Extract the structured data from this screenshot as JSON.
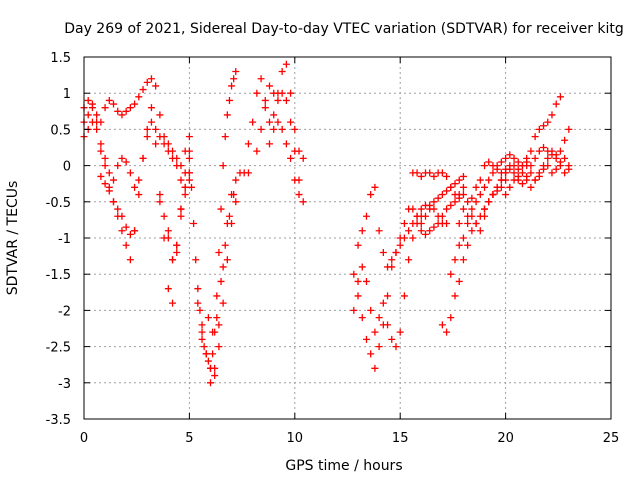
{
  "chart_data": {
    "type": "scatter",
    "title": "Day 269 of 2021, Sidereal Day-to-day VTEC variation (SDTVAR) for receiver kitg",
    "xlabel": "GPS time / hours",
    "ylabel": "SDTVAR / TECUs",
    "xlim": [
      0,
      25
    ],
    "ylim": [
      -3.5,
      1.5
    ],
    "xticks": [
      "0",
      "5",
      "10",
      "15",
      "20",
      "25"
    ],
    "yticks": [
      "1.5",
      "1",
      "0.5",
      "0",
      "-0.5",
      "-1",
      "-1.5",
      "-2",
      "-2.5",
      "-3",
      "-3.5"
    ],
    "grid": true,
    "marker": "plus",
    "color": "#ff0000",
    "series": [
      {
        "x": [
          0.0,
          0.2,
          0.4,
          0.6,
          0.8,
          1.0,
          1.2,
          1.4,
          1.6,
          1.8,
          2.0,
          2.2,
          2.4,
          2.6,
          2.8,
          3.0,
          3.2,
          3.4,
          3.6,
          3.8,
          4.0,
          4.2,
          4.4,
          4.6,
          4.8,
          5.0
        ],
        "y": [
          0.8,
          0.9,
          0.85,
          0.7,
          0.6,
          0.8,
          0.9,
          0.85,
          0.75,
          0.7,
          0.75,
          0.8,
          0.85,
          0.95,
          1.05,
          1.15,
          1.2,
          1.1,
          0.7,
          0.4,
          0.3,
          0.2,
          0.1,
          0.0,
          0.2,
          0.4
        ]
      },
      {
        "x": [
          0.0,
          0.2,
          0.4,
          0.6,
          0.8,
          1.0,
          1.2,
          1.4,
          1.6,
          1.8,
          2.0,
          2.2,
          2.4,
          2.6,
          2.8,
          3.0,
          3.2,
          3.4,
          3.6,
          3.8,
          4.0,
          4.2,
          4.4,
          4.6,
          4.8,
          5.0
        ],
        "y": [
          0.6,
          0.7,
          0.8,
          0.6,
          0.3,
          0.1,
          -0.1,
          -0.2,
          0.0,
          0.1,
          0.05,
          -0.1,
          -0.3,
          -0.2,
          0.1,
          0.4,
          0.6,
          0.5,
          0.4,
          0.3,
          0.2,
          0.1,
          0.0,
          -0.2,
          -0.1,
          0.1
        ]
      },
      {
        "x": [
          0.0,
          0.2,
          0.4,
          0.6,
          0.8,
          1.0,
          1.2,
          1.4,
          1.6,
          1.8,
          2.0,
          2.2,
          2.4,
          2.6,
          2.8,
          3.0,
          3.2,
          3.4,
          3.6,
          3.8,
          4.0,
          4.2,
          4.4,
          4.6,
          4.8,
          5.0
        ],
        "y": [
          0.4,
          0.5,
          0.6,
          0.5,
          0.2,
          0.0,
          -0.3,
          -0.5,
          -0.7,
          -0.9,
          -1.1,
          -1.3,
          -0.9,
          -0.4,
          0.1,
          0.5,
          0.8,
          0.3,
          -0.4,
          -1.0,
          -1.7,
          -1.9,
          -1.2,
          -0.6,
          -0.3,
          -0.1
        ]
      },
      {
        "x": [
          0.8,
          1.0,
          1.2,
          1.4,
          1.6,
          1.8,
          2.0,
          2.2,
          2.4
        ],
        "y": [
          -0.15,
          -0.25,
          -0.35,
          -0.5,
          -0.6,
          -0.7,
          -0.85,
          -0.95,
          -0.9
        ]
      },
      {
        "x": [
          3.6,
          3.8,
          4.0,
          4.2,
          4.4,
          4.6,
          4.8,
          5.0
        ],
        "y": [
          -0.5,
          -0.7,
          -1.0,
          -1.3,
          -1.1,
          -0.6,
          -0.3,
          -0.1
        ]
      },
      {
        "x": [
          4.0,
          4.2,
          4.4,
          4.6,
          4.8,
          5.0
        ],
        "y": [
          -0.9,
          -1.3,
          -1.1,
          -0.7,
          -0.4,
          -0.2
        ]
      },
      {
        "x": [
          5.0,
          5.1,
          5.2,
          5.3,
          5.4,
          5.5,
          5.6,
          5.7,
          5.8,
          5.9,
          6.0,
          6.1,
          6.2,
          6.3,
          6.4,
          6.5,
          6.6,
          6.7,
          6.8,
          6.9,
          7.0,
          7.1,
          7.2
        ],
        "y": [
          0.2,
          -0.3,
          -0.8,
          -1.3,
          -1.7,
          -2.0,
          -2.3,
          -2.5,
          -2.6,
          -2.7,
          -2.8,
          -2.6,
          -2.3,
          -1.8,
          -1.2,
          -0.6,
          0.0,
          0.4,
          0.7,
          0.9,
          1.1,
          1.2,
          1.3
        ]
      },
      {
        "x": [
          5.4,
          5.6,
          5.8,
          6.0,
          6.2,
          6.4,
          6.6,
          6.8,
          7.0,
          7.2,
          7.4,
          7.6,
          7.8
        ],
        "y": [
          -1.9,
          -2.2,
          -2.6,
          -3.0,
          -2.8,
          -2.2,
          -1.4,
          -0.8,
          -0.4,
          -0.2,
          -0.1,
          -0.1,
          -0.1
        ]
      },
      {
        "x": [
          5.6,
          5.8,
          6.0,
          6.2,
          6.4,
          6.6,
          6.8,
          7.0,
          7.2
        ],
        "y": [
          -2.4,
          -2.6,
          -2.8,
          -2.9,
          -2.5,
          -1.9,
          -1.3,
          -0.8,
          -0.5
        ]
      },
      {
        "x": [
          5.9,
          6.1,
          6.3,
          6.5,
          6.7,
          6.9,
          7.1
        ],
        "y": [
          -2.1,
          -2.3,
          -2.1,
          -1.6,
          -1.1,
          -0.7,
          -0.4
        ]
      },
      {
        "x": [
          7.8,
          8.0,
          8.2,
          8.4,
          8.6,
          8.8,
          9.0,
          9.2,
          9.4,
          9.6,
          9.8,
          10.0,
          10.2,
          10.4
        ],
        "y": [
          0.3,
          0.6,
          1.0,
          1.2,
          0.9,
          0.6,
          0.7,
          1.0,
          1.3,
          1.4,
          1.0,
          0.5,
          0.2,
          0.1
        ]
      },
      {
        "x": [
          8.2,
          8.4,
          8.6,
          8.8,
          9.0,
          9.2,
          9.4,
          9.6,
          9.8,
          10.0,
          10.2
        ],
        "y": [
          0.2,
          0.5,
          0.8,
          1.1,
          1.0,
          0.9,
          1.0,
          0.9,
          0.6,
          0.2,
          -0.2
        ]
      },
      {
        "x": [
          8.8,
          9.0,
          9.2,
          9.4,
          9.6,
          9.8,
          10.0,
          10.2,
          10.4
        ],
        "y": [
          0.3,
          0.5,
          0.6,
          0.5,
          0.3,
          0.1,
          -0.2,
          -0.4,
          -0.5
        ]
      },
      {
        "x": [
          12.8,
          13.0,
          13.2,
          13.4,
          13.6,
          13.8,
          14.0,
          14.2,
          14.4,
          14.6,
          14.8,
          15.0,
          15.2
        ],
        "y": [
          -1.5,
          -1.1,
          -0.9,
          -0.7,
          -0.4,
          -0.3,
          -0.9,
          -1.2,
          -1.4,
          -1.3,
          -1.2,
          -1.1,
          -1.0
        ]
      },
      {
        "x": [
          12.8,
          13.0,
          13.2,
          13.4,
          13.6,
          13.8,
          14.0,
          14.2,
          14.4,
          14.6,
          14.8,
          15.0,
          15.2,
          15.4,
          15.6,
          15.8,
          16.0
        ],
        "y": [
          -2.0,
          -1.6,
          -1.4,
          -1.6,
          -2.0,
          -2.3,
          -2.1,
          -1.9,
          -2.2,
          -2.4,
          -2.5,
          -2.3,
          -1.8,
          -1.3,
          -1.0,
          -0.8,
          -0.7
        ]
      },
      {
        "x": [
          13.0,
          13.2,
          13.4,
          13.6,
          13.8,
          14.0,
          14.2,
          14.4,
          14.6,
          14.8,
          15.0,
          15.2,
          15.4,
          15.6,
          15.8,
          16.0,
          16.2,
          16.4,
          16.6,
          16.8,
          17.0,
          17.2
        ],
        "y": [
          -1.8,
          -2.1,
          -2.4,
          -2.6,
          -2.8,
          -2.5,
          -2.2,
          -1.8,
          -1.4,
          -1.2,
          -1.0,
          -0.8,
          -0.6,
          -0.6,
          -0.7,
          -0.8,
          -0.7,
          -0.6,
          -0.6,
          -0.7,
          -0.8,
          -0.8
        ]
      },
      {
        "x": [
          15.4,
          15.6,
          15.8,
          16.0,
          16.2,
          16.4,
          16.6,
          16.8,
          17.0,
          17.2,
          17.4,
          17.6,
          17.8,
          18.0
        ],
        "y": [
          -0.9,
          -0.8,
          -0.7,
          -0.6,
          -0.55,
          -0.55,
          -0.5,
          -0.45,
          -0.4,
          -0.35,
          -0.3,
          -0.25,
          -0.2,
          -0.15
        ]
      },
      {
        "x": [
          16.0,
          16.2,
          16.4,
          16.6,
          16.8,
          17.0,
          17.2,
          17.4,
          17.6,
          17.8,
          18.0
        ],
        "y": [
          -0.9,
          -0.95,
          -0.9,
          -0.85,
          -0.8,
          -0.7,
          -0.6,
          -0.55,
          -0.5,
          -0.45,
          -0.4
        ]
      },
      {
        "x": [
          15.6,
          15.8,
          16.0,
          16.2,
          16.4,
          16.6,
          16.8,
          17.0,
          17.2,
          17.4,
          17.6,
          17.8,
          18.0
        ],
        "y": [
          -0.1,
          -0.1,
          -0.15,
          -0.1,
          -0.1,
          -0.15,
          -0.1,
          -0.1,
          -0.15,
          -0.3,
          -0.4,
          -0.4,
          -0.3
        ]
      },
      {
        "x": [
          17.0,
          17.2,
          17.4,
          17.6,
          17.8,
          18.0,
          18.2,
          18.4,
          18.6,
          18.8,
          19.0,
          19.2,
          19.4,
          19.6,
          19.8,
          20.0
        ],
        "y": [
          -2.2,
          -2.3,
          -2.1,
          -1.8,
          -1.6,
          -1.3,
          -1.1,
          -0.9,
          -0.8,
          -0.7,
          -0.6,
          -0.5,
          -0.4,
          -0.3,
          -0.2,
          -0.1
        ]
      },
      {
        "x": [
          17.4,
          17.6,
          17.8,
          18.0,
          18.2,
          18.4,
          18.6,
          18.8,
          19.0,
          19.2,
          19.4,
          19.6,
          19.8,
          20.0
        ],
        "y": [
          -1.5,
          -1.3,
          -1.1,
          -1.0,
          -0.8,
          -0.7,
          -0.8,
          -0.9,
          -0.7,
          -0.5,
          -0.4,
          -0.35,
          -0.3,
          -0.2
        ]
      },
      {
        "x": [
          17.8,
          18.0,
          18.2,
          18.4,
          18.6,
          18.8,
          19.0,
          19.2,
          19.4,
          19.6,
          19.8,
          20.0,
          20.2,
          20.4,
          20.6,
          20.8,
          21.0
        ],
        "y": [
          -0.8,
          -0.6,
          -0.5,
          -0.45,
          -0.3,
          -0.2,
          0.0,
          0.05,
          0.0,
          -0.05,
          -0.1,
          -0.05,
          0.0,
          0.0,
          -0.05,
          0.0,
          0.05
        ]
      },
      {
        "x": [
          18.2,
          18.4,
          18.6,
          18.8,
          19.0,
          19.2,
          19.4,
          19.6,
          19.8,
          20.0,
          20.2,
          20.4,
          20.6,
          20.8,
          21.0,
          21.2,
          21.4,
          21.6,
          21.8,
          22.0,
          22.2,
          22.4,
          22.6
        ],
        "y": [
          -0.7,
          -0.6,
          -0.5,
          -0.4,
          -0.3,
          -0.2,
          -0.1,
          0.0,
          0.05,
          0.1,
          0.15,
          0.1,
          0.05,
          0.0,
          0.1,
          0.2,
          0.4,
          0.5,
          0.55,
          0.6,
          0.7,
          0.85,
          0.95
        ]
      },
      {
        "x": [
          19.0,
          19.2,
          19.4,
          19.6,
          19.8,
          20.0,
          20.2,
          20.4,
          20.6,
          20.8,
          21.0,
          21.2,
          21.4,
          21.6,
          21.8,
          22.0,
          22.2,
          22.4,
          22.6,
          22.8,
          23.0
        ],
        "y": [
          -0.6,
          -0.5,
          -0.4,
          -0.3,
          -0.2,
          -0.1,
          -0.05,
          -0.1,
          -0.2,
          -0.25,
          -0.15,
          0.0,
          0.1,
          0.2,
          0.25,
          0.2,
          0.15,
          0.1,
          0.2,
          0.35,
          0.5
        ]
      },
      {
        "x": [
          20.0,
          20.2,
          20.4,
          20.6,
          20.8,
          21.0,
          21.2,
          21.4,
          21.6,
          21.8,
          22.0,
          22.2,
          22.4,
          22.6,
          22.8,
          23.0
        ],
        "y": [
          -0.4,
          -0.3,
          -0.2,
          -0.15,
          -0.1,
          -0.2,
          -0.3,
          -0.2,
          -0.1,
          0.0,
          0.1,
          0.2,
          0.15,
          0.0,
          -0.1,
          -0.05
        ]
      },
      {
        "x": [
          21.0,
          21.2,
          21.4,
          21.6,
          21.8,
          22.0,
          22.2,
          22.4,
          22.6,
          22.8,
          23.0
        ],
        "y": [
          0.0,
          -0.1,
          -0.2,
          -0.15,
          -0.05,
          0.0,
          -0.1,
          -0.05,
          0.05,
          0.1,
          0.0
        ]
      }
    ]
  }
}
